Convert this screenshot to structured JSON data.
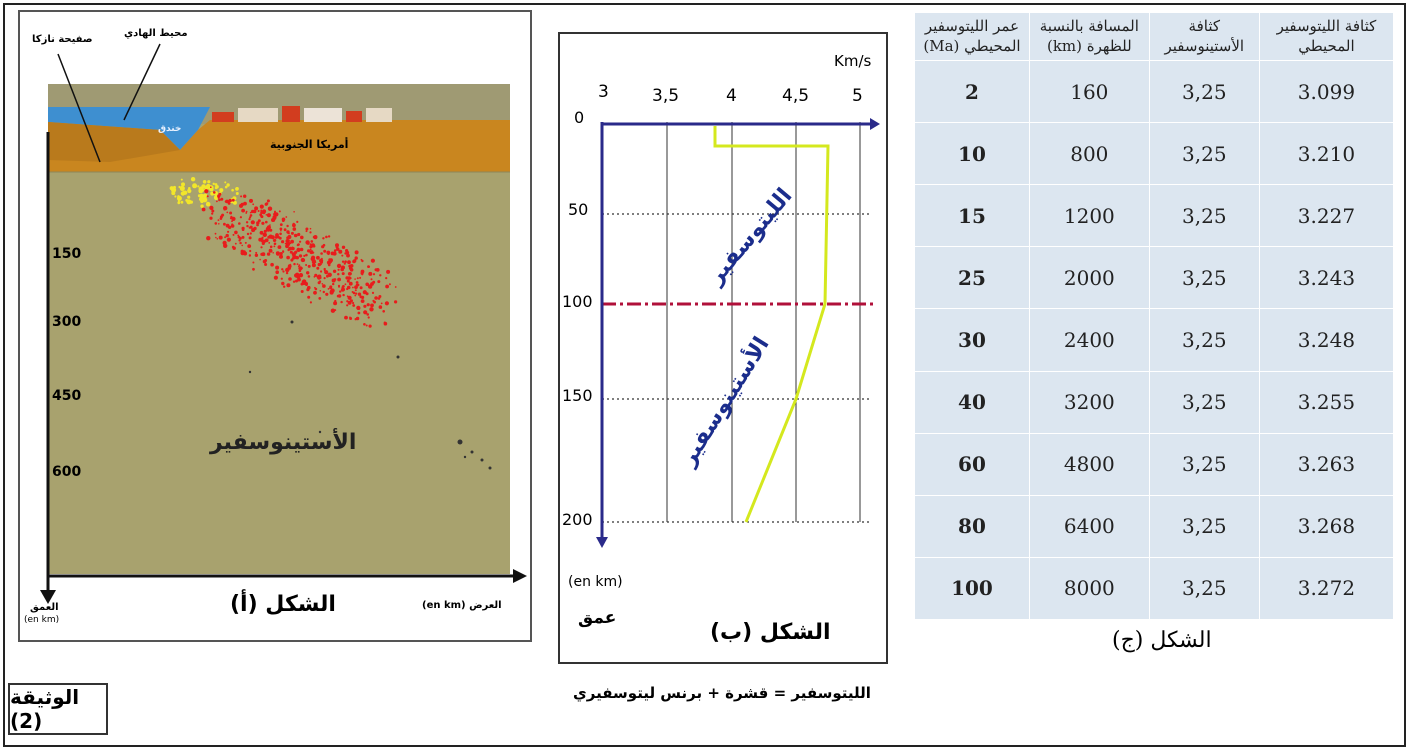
{
  "document_label": "الوثيقة (2)",
  "figure_a": {
    "caption": "الشكل (أ)",
    "labels": {
      "nazca_plate": "صفيحة نازكا",
      "pacific_ocean": "محيط الهادي",
      "trench": "خندق",
      "south_america": "أمريكا الجنوبية",
      "asthenosphere": "الأستينوسفير",
      "depth_axis": "العمق",
      "depth_unit": "(en km)",
      "width_axis": "العرض (en km)"
    },
    "depth_ticks": [
      "150",
      "300",
      "450",
      "600"
    ]
  },
  "figure_b": {
    "caption": "الشكل (ب)",
    "velocity_unit": "Km/s",
    "velocity_ticks": [
      "3",
      "3,5",
      "4",
      "4,5",
      "5"
    ],
    "depth_ticks": [
      "0",
      "50",
      "100",
      "150",
      "200"
    ],
    "depth_unit": "(en km)",
    "depth_word": "عمق",
    "lithosphere_label": "الليتوسفير",
    "asthenosphere_label": "الأستينوسفير",
    "formula": "الليتوسفير = قشرة + برنس ليتوسفيري",
    "colors": {
      "curve": "#d4e81e",
      "axis": "#2a2a8a",
      "boundary": "#b0103a"
    }
  },
  "figure_c": {
    "caption": "الشكل (ج)",
    "headers": [
      "عمر الليتوسفير المحيطي (Ma)",
      "المسافة بالنسبة للظهرة (km)",
      "كثافة الأستينوسفير",
      "كثافة الليتوسفير المحيطي"
    ],
    "rows": [
      [
        "2",
        "160",
        "3,25",
        "3.099"
      ],
      [
        "10",
        "800",
        "3,25",
        "3.210"
      ],
      [
        "15",
        "1200",
        "3,25",
        "3.227"
      ],
      [
        "25",
        "2000",
        "3,25",
        "3.243"
      ],
      [
        "30",
        "2400",
        "3,25",
        "3.248"
      ],
      [
        "40",
        "3200",
        "3,25",
        "3.255"
      ],
      [
        "60",
        "4800",
        "3,25",
        "3.263"
      ],
      [
        "80",
        "6400",
        "3,25",
        "3.268"
      ],
      [
        "100",
        "8000",
        "3,25",
        "3.272"
      ]
    ]
  }
}
